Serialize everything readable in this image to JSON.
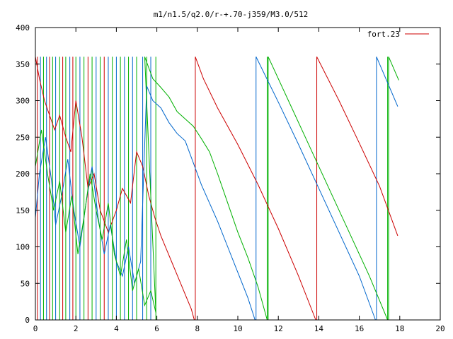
{
  "chart_data": {
    "type": "line",
    "title": "m1/n1.5/q2.0/r-+.70-j359/M3.0/512",
    "xlabel": "",
    "ylabel": "",
    "xlim": [
      0,
      20
    ],
    "ylim": [
      0,
      400
    ],
    "xticks": [
      0,
      2,
      4,
      6,
      8,
      10,
      12,
      14,
      16,
      18,
      20
    ],
    "yticks": [
      0,
      50,
      100,
      150,
      200,
      250,
      300,
      350,
      400
    ],
    "grid": false,
    "legend": {
      "placement": "top-right",
      "entries": [
        "fort.23"
      ]
    },
    "colors": {
      "red": "#cc0000",
      "green": "#00b000",
      "blue": "#0066cc"
    },
    "series": [
      {
        "name": "fort.23",
        "color": "#cc0000",
        "segments": [
          [
            [
              0.0,
              360
            ],
            [
              0.2,
              330
            ],
            [
              0.45,
              300
            ],
            [
              0.7,
              280
            ],
            [
              0.95,
              260
            ],
            [
              1.2,
              280
            ],
            [
              1.5,
              250
            ],
            [
              1.75,
              230
            ],
            [
              2.0,
              300
            ],
            [
              2.3,
              250
            ],
            [
              2.6,
              180
            ],
            [
              2.9,
              200
            ],
            [
              3.2,
              150
            ],
            [
              3.6,
              120
            ],
            [
              4.0,
              150
            ],
            [
              4.3,
              180
            ],
            [
              4.7,
              160
            ],
            [
              5.0,
              230
            ],
            [
              5.3,
              210
            ],
            [
              5.6,
              170
            ],
            [
              5.9,
              140
            ],
            [
              6.2,
              115
            ],
            [
              6.5,
              95
            ],
            [
              6.8,
              75
            ],
            [
              7.1,
              55
            ],
            [
              7.4,
              35
            ],
            [
              7.7,
              15
            ],
            [
              7.85,
              0
            ]
          ],
          [
            [
              7.9,
              360
            ],
            [
              8.3,
              330
            ],
            [
              9.0,
              290
            ],
            [
              10.0,
              240
            ],
            [
              11.0,
              185
            ],
            [
              12.0,
              125
            ],
            [
              13.0,
              60
            ],
            [
              13.85,
              0
            ]
          ],
          [
            [
              13.9,
              360
            ],
            [
              15.0,
              300
            ],
            [
              16.0,
              242
            ],
            [
              17.0,
              183
            ],
            [
              17.9,
              115
            ]
          ]
        ]
      },
      {
        "name": "",
        "color": "#0066cc",
        "segments": [
          [
            [
              0.0,
              140
            ],
            [
              0.2,
              200
            ],
            [
              0.5,
              250
            ],
            [
              0.8,
              190
            ],
            [
              1.0,
              130
            ],
            [
              1.3,
              170
            ],
            [
              1.6,
              220
            ],
            [
              1.9,
              150
            ],
            [
              2.2,
              100
            ],
            [
              2.5,
              160
            ],
            [
              2.8,
              210
            ],
            [
              3.1,
              140
            ],
            [
              3.4,
              90
            ],
            [
              3.7,
              130
            ],
            [
              4.0,
              80
            ],
            [
              4.3,
              60
            ],
            [
              4.6,
              100
            ],
            [
              4.9,
              50
            ],
            [
              5.2,
              80
            ],
            [
              5.5,
              320
            ],
            [
              5.8,
              300
            ],
            [
              6.2,
              290
            ],
            [
              6.6,
              270
            ],
            [
              7.0,
              255
            ],
            [
              7.4,
              245
            ],
            [
              7.8,
              215
            ],
            [
              8.2,
              185
            ],
            [
              8.6,
              160
            ],
            [
              9.0,
              135
            ],
            [
              9.5,
              100
            ],
            [
              10.0,
              65
            ],
            [
              10.5,
              30
            ],
            [
              10.85,
              0
            ]
          ],
          [
            [
              10.9,
              360
            ],
            [
              12.0,
              298
            ],
            [
              13.0,
              240
            ],
            [
              14.0,
              180
            ],
            [
              15.0,
              120
            ],
            [
              16.0,
              60
            ],
            [
              16.8,
              0
            ]
          ],
          [
            [
              16.85,
              360
            ],
            [
              17.9,
              292
            ]
          ]
        ]
      },
      {
        "name": "",
        "color": "#00b000",
        "segments": [
          [
            [
              0.0,
              210
            ],
            [
              0.3,
              260
            ],
            [
              0.6,
              200
            ],
            [
              0.9,
              150
            ],
            [
              1.2,
              190
            ],
            [
              1.5,
              120
            ],
            [
              1.8,
              170
            ],
            [
              2.1,
              90
            ],
            [
              2.4,
              140
            ],
            [
              2.7,
              200
            ],
            [
              3.0,
              150
            ],
            [
              3.3,
              110
            ],
            [
              3.6,
              160
            ],
            [
              3.9,
              90
            ],
            [
              4.2,
              60
            ],
            [
              4.5,
              110
            ],
            [
              4.8,
              40
            ],
            [
              5.1,
              70
            ],
            [
              5.4,
              20
            ],
            [
              5.7,
              40
            ],
            [
              5.95,
              10
            ],
            [
              5.4,
              360
            ],
            [
              5.8,
              330
            ],
            [
              6.2,
              318
            ],
            [
              6.6,
              305
            ],
            [
              7.0,
              285
            ],
            [
              7.4,
              275
            ],
            [
              7.8,
              265
            ],
            [
              8.2,
              248
            ],
            [
              8.6,
              230
            ],
            [
              9.0,
              200
            ],
            [
              9.5,
              160
            ],
            [
              10.0,
              120
            ],
            [
              10.5,
              85
            ],
            [
              11.0,
              45
            ],
            [
              11.45,
              0
            ]
          ],
          [
            [
              11.5,
              360
            ],
            [
              12.5,
              300
            ],
            [
              13.5,
              240
            ],
            [
              14.5,
              180
            ],
            [
              15.5,
              120
            ],
            [
              16.5,
              60
            ],
            [
              17.4,
              0
            ]
          ],
          [
            [
              17.45,
              360
            ],
            [
              17.95,
              328
            ]
          ]
        ]
      }
    ],
    "verticals": [
      {
        "x": 0.1,
        "color": "#cc0000"
      },
      {
        "x": 0.25,
        "color": "#0066cc"
      },
      {
        "x": 0.4,
        "color": "#00b000"
      },
      {
        "x": 0.55,
        "color": "#0066cc"
      },
      {
        "x": 0.7,
        "color": "#cc0000"
      },
      {
        "x": 0.85,
        "color": "#00b000"
      },
      {
        "x": 1.0,
        "color": "#0066cc"
      },
      {
        "x": 1.2,
        "color": "#00b000"
      },
      {
        "x": 1.35,
        "color": "#cc0000"
      },
      {
        "x": 1.5,
        "color": "#00b000"
      },
      {
        "x": 1.7,
        "color": "#0066cc"
      },
      {
        "x": 1.85,
        "color": "#cc0000"
      },
      {
        "x": 2.0,
        "color": "#00b000"
      },
      {
        "x": 2.2,
        "color": "#0066cc"
      },
      {
        "x": 2.4,
        "color": "#00b000"
      },
      {
        "x": 2.6,
        "color": "#cc0000"
      },
      {
        "x": 2.8,
        "color": "#00b000"
      },
      {
        "x": 3.0,
        "color": "#0066cc"
      },
      {
        "x": 3.2,
        "color": "#00b000"
      },
      {
        "x": 3.4,
        "color": "#cc0000"
      },
      {
        "x": 3.6,
        "color": "#0066cc"
      },
      {
        "x": 3.8,
        "color": "#00b000"
      },
      {
        "x": 4.0,
        "color": "#0066cc"
      },
      {
        "x": 4.2,
        "color": "#00b000"
      },
      {
        "x": 4.4,
        "color": "#0066cc"
      },
      {
        "x": 4.6,
        "color": "#00b000"
      },
      {
        "x": 4.8,
        "color": "#0066cc"
      },
      {
        "x": 5.0,
        "color": "#00b000"
      },
      {
        "x": 5.3,
        "color": "#0066cc"
      },
      {
        "x": 5.5,
        "color": "#00b000"
      },
      {
        "x": 5.7,
        "color": "#0066cc"
      },
      {
        "x": 5.95,
        "color": "#00b000"
      },
      {
        "x": 7.9,
        "color": "#cc0000"
      },
      {
        "x": 10.9,
        "color": "#0066cc"
      },
      {
        "x": 11.45,
        "color": "#00b000"
      },
      {
        "x": 11.5,
        "color": "#00b000"
      },
      {
        "x": 13.9,
        "color": "#cc0000"
      },
      {
        "x": 16.85,
        "color": "#0066cc"
      },
      {
        "x": 17.4,
        "color": "#00b000"
      },
      {
        "x": 17.45,
        "color": "#00b000"
      }
    ]
  }
}
